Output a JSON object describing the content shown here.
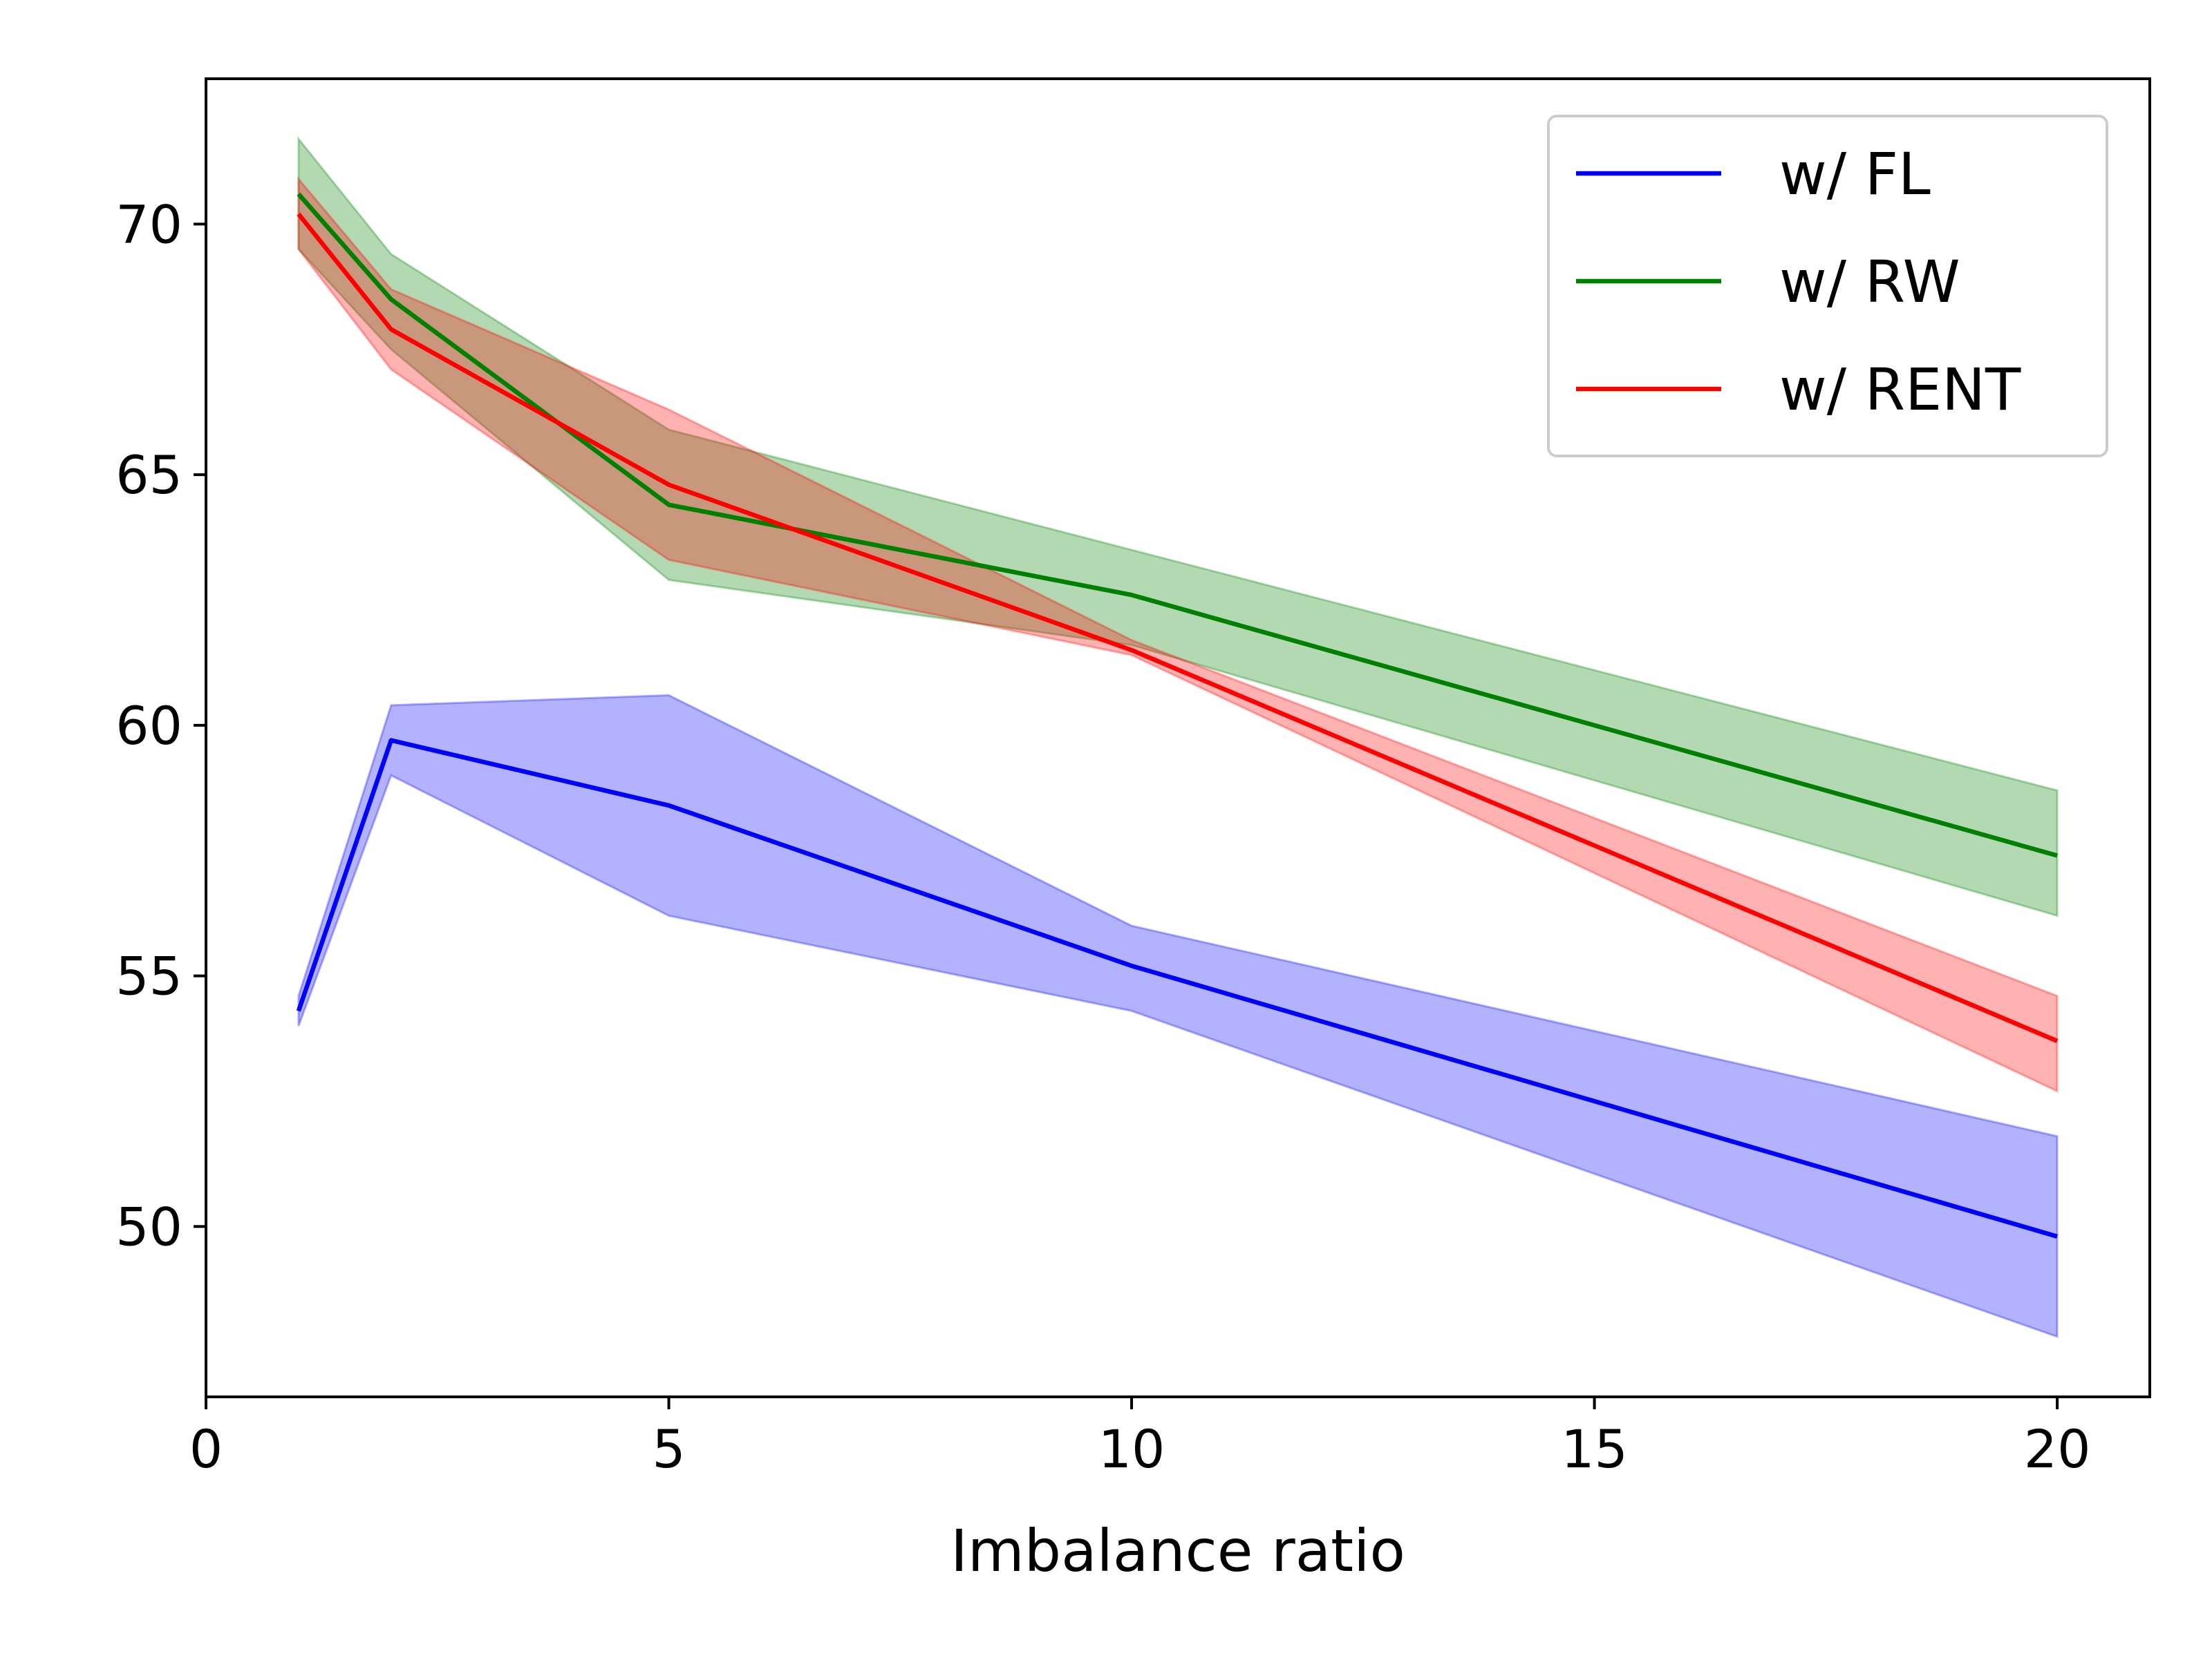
{
  "chart_data": {
    "type": "line",
    "title": "",
    "xlabel": "Imbalance ratio",
    "ylabel": "",
    "xlim": [
      0,
      21
    ],
    "ylim": [
      46.6,
      72.9
    ],
    "xticks": [
      0,
      5,
      10,
      15,
      20
    ],
    "yticks": [
      50,
      55,
      60,
      65,
      70
    ],
    "grid": false,
    "legend_position": "top-right",
    "x": [
      1,
      2,
      5,
      10,
      20
    ],
    "series": [
      {
        "name": "w/ FL",
        "color": "#0000ff",
        "band_color": "#0000ff",
        "values": [
          54.3,
          59.7,
          58.4,
          55.2,
          49.8
        ],
        "lower": [
          54.0,
          59.0,
          56.2,
          54.3,
          47.8
        ],
        "upper": [
          54.6,
          60.4,
          60.6,
          56.0,
          51.8
        ]
      },
      {
        "name": "w/ RW",
        "color": "#008000",
        "band_color": "#008000",
        "values": [
          70.6,
          68.5,
          64.4,
          62.6,
          57.4
        ],
        "lower": [
          69.5,
          67.5,
          62.9,
          61.6,
          56.2
        ],
        "upper": [
          71.7,
          69.4,
          65.9,
          63.5,
          58.7
        ]
      },
      {
        "name": "w/ RENT",
        "color": "#ff0000",
        "band_color": "#ff0000",
        "values": [
          70.2,
          67.9,
          64.8,
          61.5,
          53.7
        ],
        "lower": [
          69.5,
          67.1,
          63.3,
          61.4,
          52.7
        ],
        "upper": [
          70.9,
          68.7,
          66.3,
          61.7,
          54.6
        ]
      }
    ]
  }
}
